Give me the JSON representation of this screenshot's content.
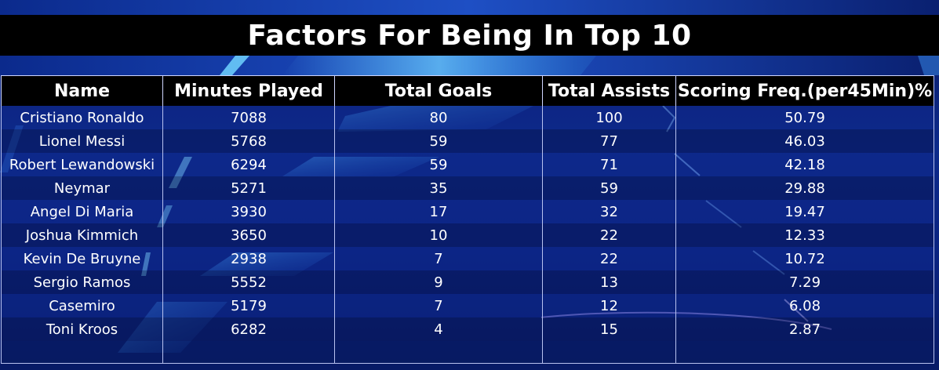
{
  "title": "Factors For Being In Top 10",
  "columns": [
    "Name",
    "Minutes Played",
    "Total Goals",
    "Total Assists",
    "Scoring Freq.(per45Min)%"
  ],
  "rows": [
    [
      "Cristiano Ronaldo",
      "7088",
      "80",
      "100",
      "50.79"
    ],
    [
      "Lionel Messi",
      "5768",
      "59",
      "77",
      "46.03"
    ],
    [
      "Robert Lewandowski",
      "6294",
      "59",
      "71",
      "42.18"
    ],
    [
      "Neymar",
      "5271",
      "35",
      "59",
      "29.88"
    ],
    [
      "Angel Di Maria",
      "3930",
      "17",
      "32",
      "19.47"
    ],
    [
      "Joshua Kimmich",
      "3650",
      "10",
      "22",
      "12.33"
    ],
    [
      "Kevin De Bruyne",
      "2938",
      "7",
      "22",
      "10.72"
    ],
    [
      "Sergio Ramos",
      "5552",
      "9",
      "13",
      "7.29"
    ],
    [
      "Casemiro",
      "5179",
      "7",
      "12",
      "6.08"
    ],
    [
      "Toni Kroos",
      "6282",
      "4",
      "15",
      "2.87"
    ]
  ],
  "colors": {
    "background": "#0c2a8a",
    "header": "#000000",
    "text": "#ffffff",
    "accent": "#5ec8ff"
  }
}
